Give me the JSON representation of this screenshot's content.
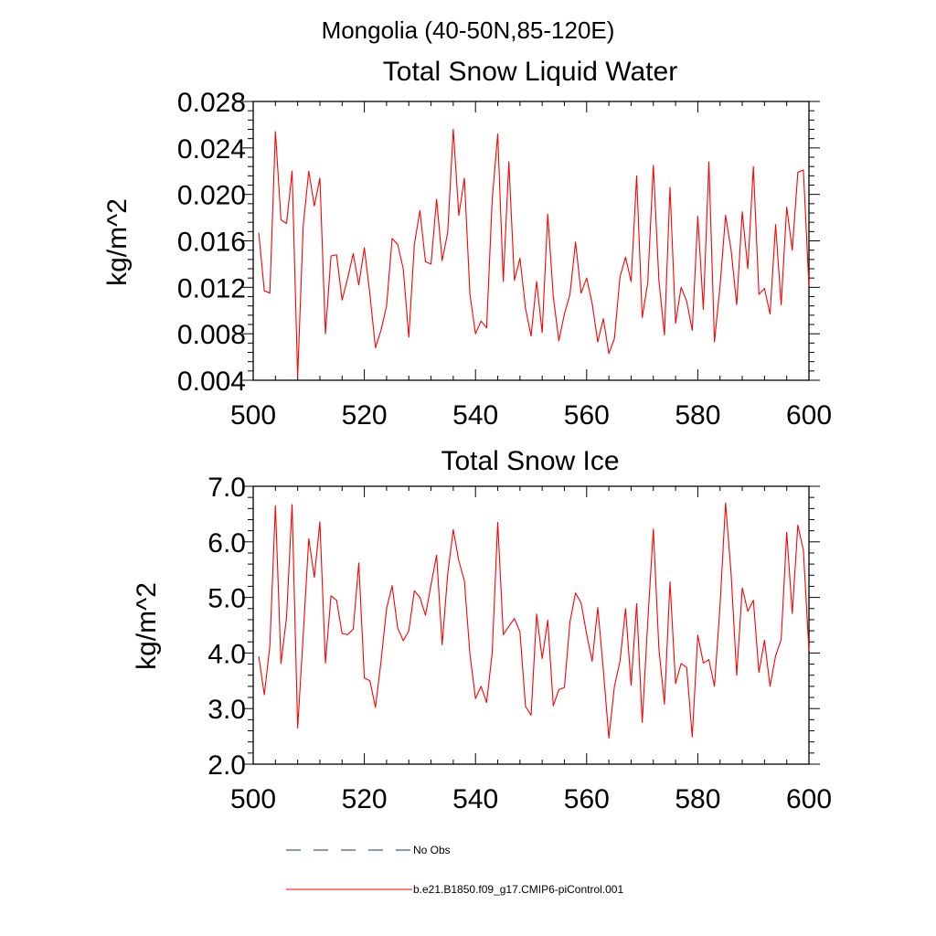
{
  "figure": {
    "title": "Mongolia (40-50N,85-120E)"
  },
  "chart_data": [
    {
      "type": "line",
      "title": "Total Snow Liquid Water",
      "xlabel": "",
      "ylabel": "kg/m^2",
      "xlim": [
        500,
        600
      ],
      "ylim": [
        0.004,
        0.028
      ],
      "xticks": [
        500,
        520,
        540,
        560,
        580,
        600
      ],
      "xtick_labels": [
        "500",
        "520",
        "540",
        "560",
        "580",
        "600"
      ],
      "yticks": [
        0.004,
        0.008,
        0.012,
        0.016,
        0.02,
        0.024,
        0.028
      ],
      "ytick_labels": [
        "0.004",
        "0.008",
        "0.012",
        "0.016",
        "0.020",
        "0.024",
        "0.028"
      ],
      "grid": false,
      "series": [
        {
          "name": "b.e21.B1850.f09_g17.CMIP6-piControl.001",
          "color": "#ff0000",
          "x_start": 501,
          "x_step": 1,
          "values": [
            0.0167,
            0.0117,
            0.0115,
            0.0254,
            0.0178,
            0.0175,
            0.022,
            0.0043,
            0.0173,
            0.022,
            0.019,
            0.0214,
            0.008,
            0.0147,
            0.0148,
            0.0109,
            0.0128,
            0.0149,
            0.0122,
            0.0154,
            0.0114,
            0.0068,
            0.0083,
            0.0104,
            0.0162,
            0.0157,
            0.0136,
            0.0077,
            0.0157,
            0.0186,
            0.0142,
            0.014,
            0.0196,
            0.0143,
            0.0167,
            0.0256,
            0.0182,
            0.0214,
            0.0114,
            0.008,
            0.0091,
            0.0085,
            0.0195,
            0.0252,
            0.0125,
            0.0228,
            0.0126,
            0.0145,
            0.0102,
            0.0078,
            0.0125,
            0.0081,
            0.0183,
            0.0112,
            0.0074,
            0.0097,
            0.0114,
            0.0159,
            0.0115,
            0.0128,
            0.0106,
            0.0073,
            0.0093,
            0.0063,
            0.0076,
            0.0129,
            0.0146,
            0.0125,
            0.0216,
            0.0094,
            0.0124,
            0.0225,
            0.0126,
            0.0079,
            0.0206,
            0.0089,
            0.012,
            0.0108,
            0.0083,
            0.0181,
            0.0101,
            0.0228,
            0.0073,
            0.0121,
            0.0182,
            0.0152,
            0.0105,
            0.0185,
            0.0136,
            0.0224,
            0.0114,
            0.0119,
            0.0097,
            0.0174,
            0.0105,
            0.0189,
            0.0152,
            0.0219,
            0.0221,
            0.0121
          ]
        }
      ]
    },
    {
      "type": "line",
      "title": "Total Snow Ice",
      "xlabel": "",
      "ylabel": "kg/m^2",
      "xlim": [
        500,
        600
      ],
      "ylim": [
        2.0,
        7.0
      ],
      "xticks": [
        500,
        520,
        540,
        560,
        580,
        600
      ],
      "xtick_labels": [
        "500",
        "520",
        "540",
        "560",
        "580",
        "600"
      ],
      "yticks": [
        2.0,
        3.0,
        4.0,
        5.0,
        6.0,
        7.0
      ],
      "ytick_labels": [
        "2.0",
        "3.0",
        "4.0",
        "5.0",
        "6.0",
        "7.0"
      ],
      "grid": false,
      "series": [
        {
          "name": "b.e21.B1850.f09_g17.CMIP6-piControl.001",
          "color": "#ff0000",
          "x_start": 501,
          "x_step": 1,
          "values": [
            3.94,
            3.25,
            4.13,
            6.65,
            3.81,
            4.64,
            6.67,
            2.65,
            4.32,
            6.06,
            5.36,
            6.36,
            3.82,
            5.03,
            4.95,
            4.35,
            4.33,
            4.43,
            5.62,
            3.55,
            3.5,
            3.02,
            3.85,
            4.8,
            5.21,
            4.45,
            4.22,
            4.4,
            5.12,
            5.0,
            4.68,
            5.23,
            5.76,
            4.15,
            5.42,
            6.22,
            5.66,
            5.3,
            3.98,
            3.18,
            3.4,
            3.11,
            4.0,
            6.35,
            4.33,
            4.48,
            4.62,
            4.38,
            3.04,
            2.88,
            4.7,
            3.9,
            4.59,
            3.05,
            3.34,
            3.38,
            4.56,
            5.08,
            4.9,
            4.34,
            3.85,
            4.82,
            3.7,
            2.47,
            3.4,
            3.85,
            4.8,
            3.42,
            4.89,
            2.75,
            4.57,
            6.23,
            4.08,
            3.08,
            5.28,
            3.45,
            3.81,
            3.74,
            2.49,
            4.32,
            3.82,
            3.88,
            3.4,
            4.85,
            6.7,
            5.42,
            3.6,
            5.17,
            4.75,
            4.95,
            3.65,
            4.23,
            3.4,
            3.95,
            4.24,
            6.17,
            4.71,
            6.3,
            5.85,
            4.04
          ]
        }
      ]
    }
  ],
  "legend": {
    "placement": "bottom",
    "items": [
      {
        "label": "No Obs",
        "color": "#1f2f6b",
        "style": "dashed"
      },
      {
        "label": "b.e21.B1850.f09_g17.CMIP6-piControl.001",
        "color": "#ff0000",
        "style": "solid"
      }
    ]
  }
}
